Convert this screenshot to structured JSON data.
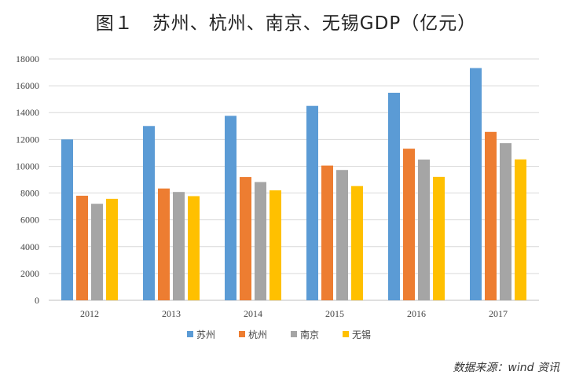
{
  "title": "图１　苏州、杭州、南京、无锡GDP（亿元）",
  "source": "数据来源：wind 资讯",
  "chart_data": {
    "type": "bar",
    "title": "图１　苏州、杭州、南京、无锡GDP（亿元）",
    "xlabel": "",
    "ylabel": "",
    "ylim": [
      0,
      18000
    ],
    "yticks": [
      0,
      2000,
      4000,
      6000,
      8000,
      10000,
      12000,
      14000,
      16000,
      18000
    ],
    "grid": true,
    "legend_position": "bottom",
    "categories": [
      "2012",
      "2013",
      "2014",
      "2015",
      "2016",
      "2017"
    ],
    "series": [
      {
        "name": "苏州",
        "color": "#5B9BD5",
        "values": [
          12000,
          13000,
          13760,
          14500,
          15480,
          17320
        ]
      },
      {
        "name": "杭州",
        "color": "#ED7D31",
        "values": [
          7800,
          8340,
          9200,
          10050,
          11310,
          12560
        ]
      },
      {
        "name": "南京",
        "color": "#A5A5A5",
        "values": [
          7200,
          8080,
          8820,
          9720,
          10500,
          11720
        ]
      },
      {
        "name": "无锡",
        "color": "#FFC000",
        "values": [
          7570,
          7770,
          8200,
          8520,
          9210,
          10510
        ]
      }
    ]
  }
}
